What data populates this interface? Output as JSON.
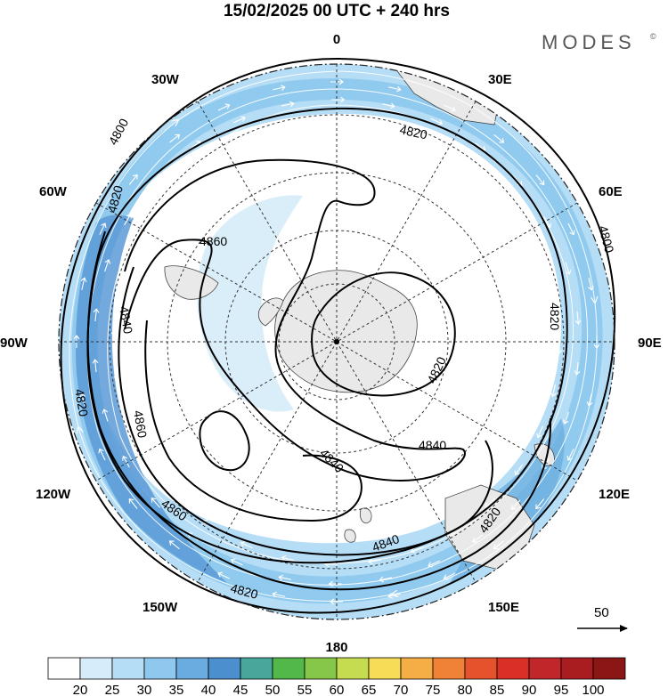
{
  "title": "15/02/2025  00 UTC  + 240 hrs",
  "brand": "MODES",
  "brand_mark": "©",
  "longitude_labels": {
    "lon_0": "0",
    "lon_30e": "30E",
    "lon_60e": "60E",
    "lon_90e": "90E",
    "lon_120e": "120E",
    "lon_150e": "150E",
    "lon_180": "180",
    "lon_150w": "150W",
    "lon_120w": "120W",
    "lon_90w": "90W",
    "lon_60w": "60W",
    "lon_30w": "30W"
  },
  "contour_labels": [
    "4800",
    "4820",
    "4820",
    "4860",
    "4840",
    "4820",
    "4860",
    "4820",
    "4840",
    "4820",
    "4840",
    "4860",
    "4840",
    "4820",
    "4820",
    "4800"
  ],
  "reference_vector": {
    "label": "50"
  },
  "colorbar": {
    "levels": [
      "20",
      "25",
      "30",
      "35",
      "40",
      "45",
      "50",
      "55",
      "60",
      "65",
      "70",
      "75",
      "80",
      "85",
      "90",
      "95",
      "100"
    ],
    "colors": [
      "#ffffff",
      "#d6ecfa",
      "#b5ddf6",
      "#8ec8ee",
      "#6aacdf",
      "#4c8fce",
      "#48a79a",
      "#52b84a",
      "#86c649",
      "#c6dc50",
      "#f7dd57",
      "#f5ae45",
      "#ef8236",
      "#e5532d",
      "#d82f27",
      "#c0262a",
      "#a91d20",
      "#8a1616"
    ]
  },
  "colors": {
    "land": "#e9e9e9",
    "jet_light": "#b5ddf6",
    "jet_dark": "#5a9ad6",
    "streamline": "#ffffff",
    "contour": "#000000"
  }
}
